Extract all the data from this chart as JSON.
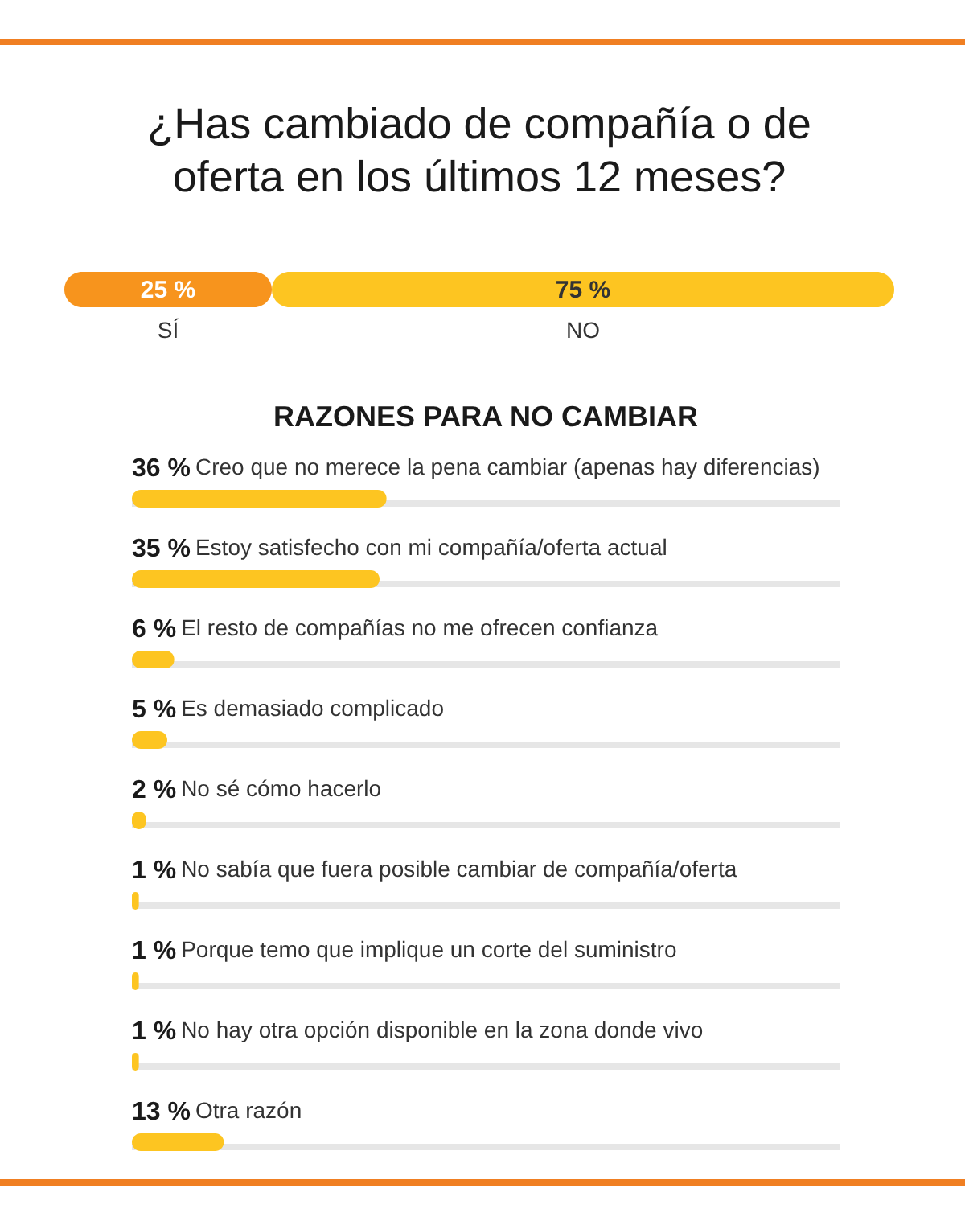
{
  "chart_data": [
    {
      "type": "bar",
      "orientation": "horizontal",
      "stacked": true,
      "title": "¿Has cambiado de compañía o de oferta en los últimos 12 meses?",
      "categories": [
        null
      ],
      "xlim": [
        0,
        100
      ],
      "tick_labels": false,
      "series": [
        {
          "name": "SÍ",
          "color": "#f7941d",
          "values": [
            25
          ],
          "value_labels": [
            "25 %"
          ]
        },
        {
          "name": "NO",
          "color": "#fdc521",
          "values": [
            75
          ],
          "value_labels": [
            "75 %"
          ]
        }
      ]
    },
    {
      "type": "bar",
      "orientation": "horizontal",
      "title": "RAZONES PARA NO CAMBIAR",
      "xlim": [
        0,
        100
      ],
      "tick_labels": false,
      "categories": [
        "Creo que no merece la pena cambiar (apenas hay diferencias)",
        "Estoy satisfecho con mi compañía/oferta actual",
        "El resto de compañías no me ofrecen confianza",
        "Es demasiado complicado",
        "No sé cómo hacerlo",
        "No sabía que fuera posible cambiar de compañía/oferta",
        "Porque temo que implique un corte del suministro",
        "No hay otra opción disponible en la zona donde vivo",
        "Otra razón"
      ],
      "series": [
        {
          "color": "#fdc521",
          "values": [
            36,
            35,
            6,
            5,
            2,
            1,
            1,
            1,
            13
          ],
          "value_labels": [
            "36 %",
            "35 %",
            "6 %",
            "5 %",
            "2 %",
            "1 %",
            "1 %",
            "1 %",
            "13 %"
          ]
        }
      ]
    }
  ]
}
